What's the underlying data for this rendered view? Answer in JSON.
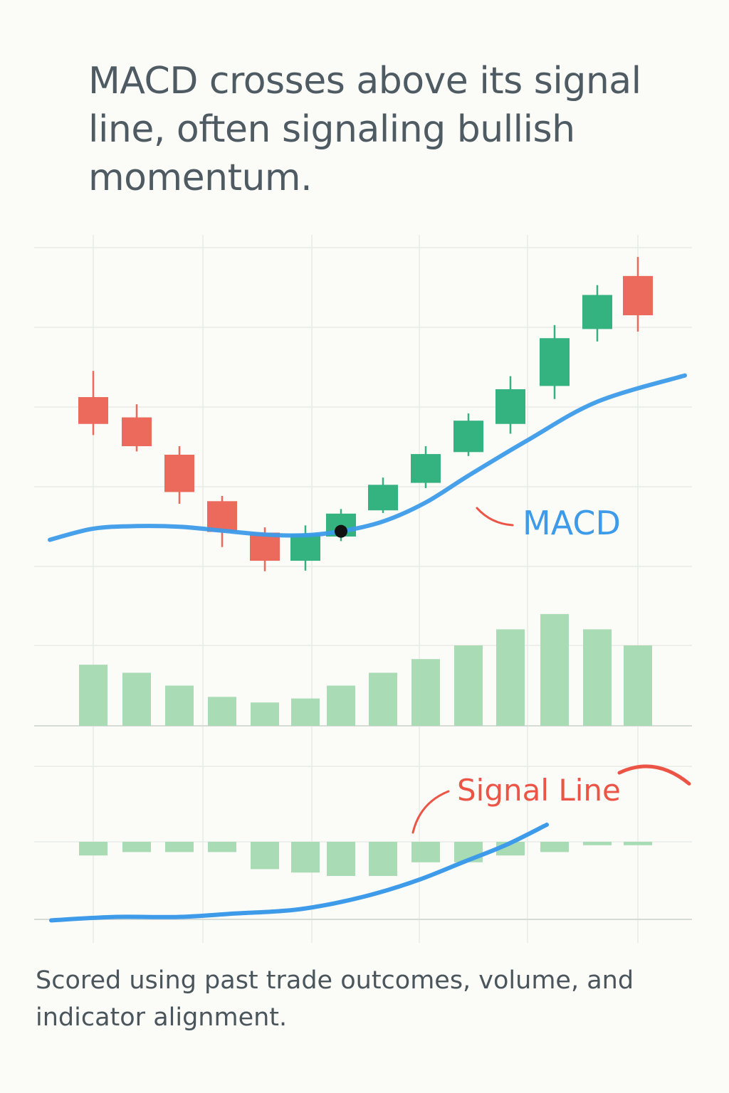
{
  "headline": "MACD crosses above its signal line, often signaling bullish momentum.",
  "footnote": "Scored using past trade outcomes, volume, and indicator alignment.",
  "colors": {
    "background": "#fbfbf8",
    "bullish": "#34b27f",
    "bearish": "#ec6a5c",
    "macd_line": "#3d9be9",
    "signal_label": "#ec5446",
    "histogram": "#a9dbb5",
    "grid": "#e8ebe8"
  },
  "chart_data": {
    "type": "candlestick",
    "price_pane": {
      "candles": [
        {
          "direction": "bear",
          "open": 21.3,
          "close": 17.2,
          "high": 25.3,
          "low": 15.5
        },
        {
          "direction": "bear",
          "open": 18.2,
          "close": 13.8,
          "high": 20.2,
          "low": 13.0
        },
        {
          "direction": "bear",
          "open": 12.5,
          "close": 6.8,
          "high": 13.8,
          "low": 5.0
        },
        {
          "direction": "bear",
          "open": 5.4,
          "close": 0.7,
          "high": 6.2,
          "low": -1.6
        },
        {
          "direction": "bear",
          "open": 0.6,
          "close": -3.7,
          "high": 1.4,
          "low": -5.3
        },
        {
          "direction": "bull",
          "open": -3.7,
          "close": 0.4,
          "high": 1.7,
          "low": -5.2
        },
        {
          "direction": "bull",
          "open": 0.0,
          "close": 3.5,
          "high": 4.2,
          "low": -0.7
        },
        {
          "direction": "bull",
          "open": 4.0,
          "close": 7.9,
          "high": 9.0,
          "low": 3.6
        },
        {
          "direction": "bull",
          "open": 8.2,
          "close": 12.6,
          "high": 13.8,
          "low": 7.4
        },
        {
          "direction": "bull",
          "open": 12.9,
          "close": 17.7,
          "high": 18.8,
          "low": 12.3
        },
        {
          "direction": "bull",
          "open": 17.2,
          "close": 22.5,
          "high": 24.5,
          "low": 15.7
        },
        {
          "direction": "bull",
          "open": 23.0,
          "close": 30.3,
          "high": 32.3,
          "low": 21.0
        },
        {
          "direction": "bull",
          "open": 31.7,
          "close": 36.9,
          "high": 38.4,
          "low": 29.8
        },
        {
          "direction": "bear",
          "open": 39.8,
          "close": 33.8,
          "high": 42.7,
          "low": 31.3
        }
      ],
      "macd_line": [
        -0.5,
        1.2,
        1.6,
        1.5,
        0.9,
        0.3,
        0.2,
        0.8,
        2.3,
        5.2,
        9.3,
        14.7,
        20.6,
        24.6
      ]
    },
    "histogram_pane": {
      "values": [
        7.6,
        6.6,
        5.0,
        3.6,
        2.9,
        3.4,
        5.0,
        6.6,
        8.3,
        10.0,
        12.0,
        13.9,
        12.0,
        10.0
      ]
    },
    "lower_pane": {
      "bars": [
        -0.4,
        -0.3,
        -0.3,
        -0.3,
        -0.8,
        -0.9,
        -1.0,
        -1.0,
        -0.6,
        -0.6,
        -0.4,
        -0.3,
        -0.1,
        -0.1
      ],
      "signal_line": [
        -2.3,
        -2.2,
        -2.2,
        -2.1,
        -2.0,
        -1.8,
        -1.5,
        -1.1,
        -0.6,
        -0.1,
        0.5
      ],
      "signal_line_tail": [
        1.2,
        1.7
      ]
    },
    "labels": {
      "macd": "MACD",
      "signal": "Signal Line"
    },
    "crossover_index": 6,
    "grid": true
  }
}
